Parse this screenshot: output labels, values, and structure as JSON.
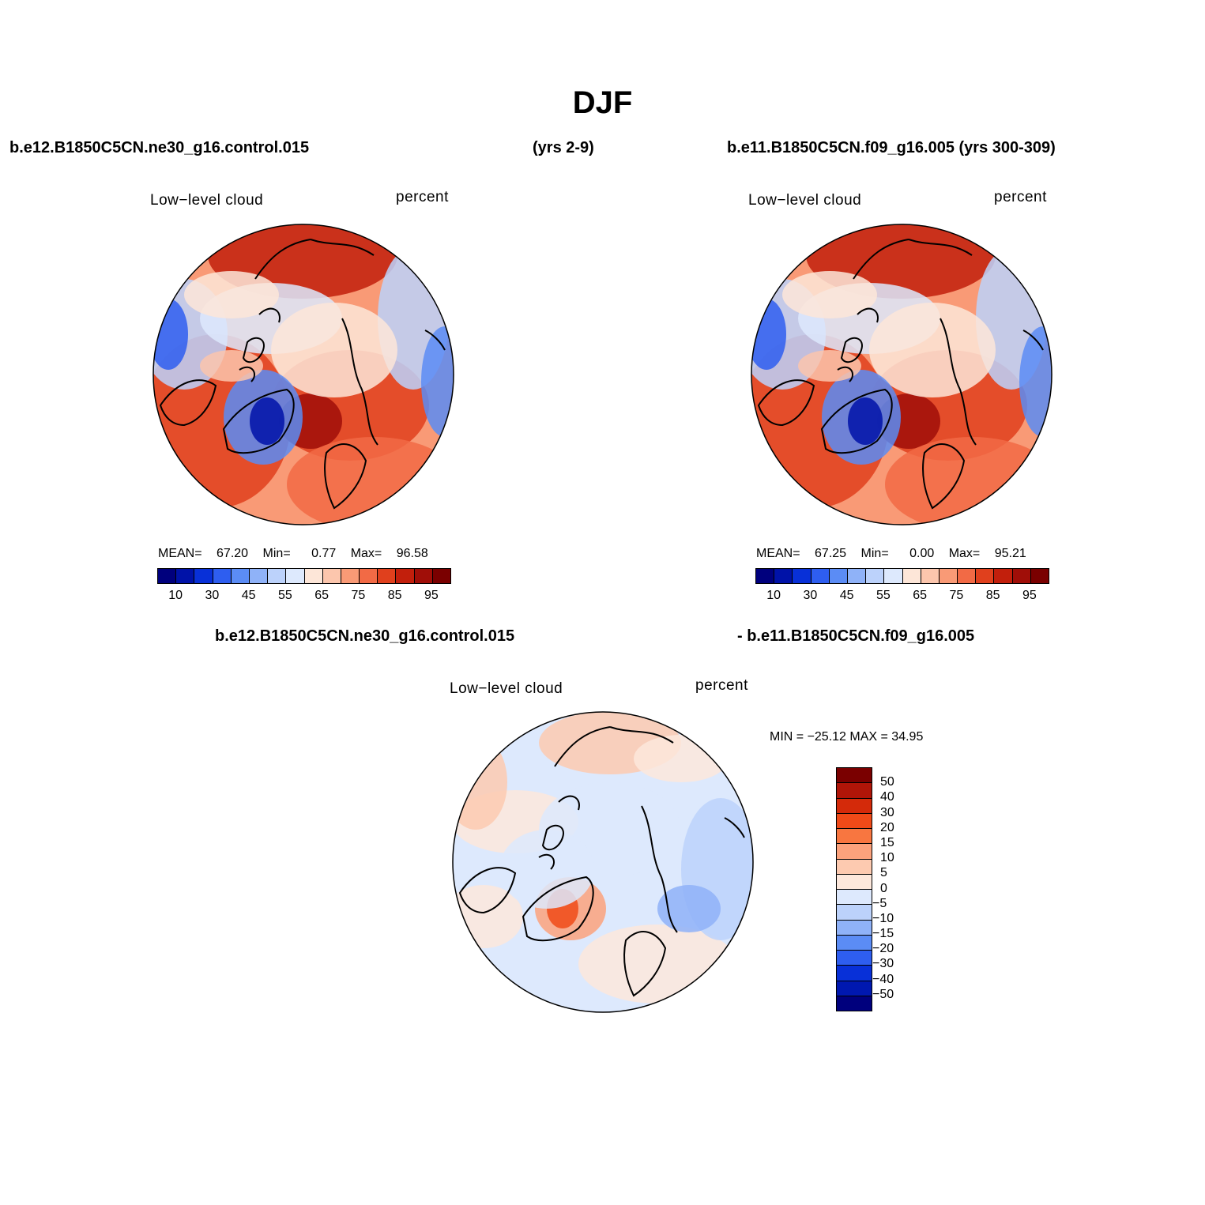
{
  "title": "DJF",
  "header": {
    "case1": "b.e12.B1850C5CN.ne30_g16.control.015",
    "years1": "(yrs 2-9)",
    "case2": "b.e11.B1850C5CN.f09_g16.005 (yrs 300-309)",
    "diff_case1": "b.e12.B1850C5CN.ne30_g16.control.015",
    "diff_case2": "- b.e11.B1850C5CN.f09_g16.005"
  },
  "panels": [
    {
      "variable": "Low−level cloud",
      "units": "percent",
      "mean_label": "MEAN=",
      "mean": "67.20",
      "min_label": "Min=",
      "min": "0.77",
      "max_label": "Max=",
      "max": "96.58"
    },
    {
      "variable": "Low−level cloud",
      "units": "percent",
      "mean_label": "MEAN=",
      "mean": "67.25",
      "min_label": "Min=",
      "min": "0.00",
      "max_label": "Max=",
      "max": "95.21"
    },
    {
      "variable": "Low−level cloud",
      "units": "percent",
      "minmax": "MIN = −25.12  MAX =   34.95"
    }
  ],
  "colorbar_abs": {
    "colors": [
      "#00007d",
      "#0012a8",
      "#0830d8",
      "#2e5ef0",
      "#5b8cf5",
      "#8fb2f8",
      "#bcd2fb",
      "#dde9fd",
      "#fde6d8",
      "#fcc6ad",
      "#f99a76",
      "#f26a45",
      "#e0401d",
      "#c21f0c",
      "#a00e08",
      "#7a0000"
    ],
    "tick_labels": [
      "10",
      "30",
      "45",
      "55",
      "65",
      "75",
      "85",
      "95"
    ]
  },
  "colorbar_diff": {
    "colors": [
      "#7a0000",
      "#b01508",
      "#d42a0a",
      "#f04a18",
      "#f87640",
      "#fca27c",
      "#fdcab0",
      "#fde8dc",
      "#dde9fd",
      "#bcd2fb",
      "#8fb2f8",
      "#5b8cf5",
      "#2e5ef0",
      "#0830d8",
      "#0018b0",
      "#00007d"
    ],
    "tick_labels": [
      "50",
      "40",
      "30",
      "20",
      "15",
      "10",
      "5",
      "0",
      "−5",
      "−10",
      "−15",
      "−20",
      "−30",
      "−40",
      "−50"
    ]
  },
  "map_colors": {
    "abs_base": "#f99a76",
    "diff_base": "#dde9fd",
    "coastline": "#000000"
  }
}
